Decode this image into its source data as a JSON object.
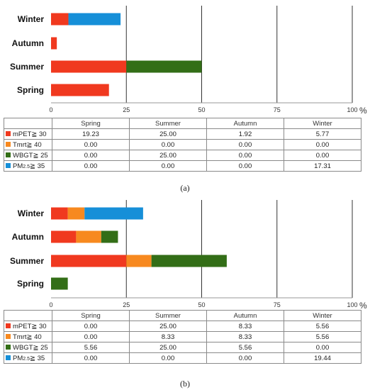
{
  "colors": {
    "mPET": "#f0391f",
    "Tmrt": "#f7891f",
    "WBGT": "#336e17",
    "PM25": "#168fd8"
  },
  "chart_data": [
    {
      "type": "bar",
      "orientation": "horizontal",
      "stacked": true,
      "categories": [
        "Winter",
        "Autumn",
        "Summer",
        "Spring"
      ],
      "xticks": [
        "0",
        "25",
        "50",
        "75",
        "100"
      ],
      "xlim": [
        0,
        100
      ],
      "unit_label": "%",
      "series": [
        {
          "name_prefix": "mPET",
          "name_sym": "≧ 30",
          "key": "mPET",
          "values": {
            "Spring": 19.23,
            "Summer": 25.0,
            "Autumn": 1.92,
            "Winter": 5.77
          }
        },
        {
          "name_prefix": "Tmrt",
          "name_sym": "≧ 40",
          "key": "Tmrt",
          "values": {
            "Spring": 0.0,
            "Summer": 0.0,
            "Autumn": 0.0,
            "Winter": 0.0
          }
        },
        {
          "name_prefix": "WBGT",
          "name_sym": "≧ 25",
          "key": "WBGT",
          "values": {
            "Spring": 0.0,
            "Summer": 25.0,
            "Autumn": 0.0,
            "Winter": 0.0
          }
        },
        {
          "name_prefix": "PM",
          "name_sub": "2.5",
          "name_sym": "≧ 35",
          "key": "PM25",
          "values": {
            "Spring": 0.0,
            "Summer": 0.0,
            "Autumn": 0.0,
            "Winter": 17.31
          }
        }
      ],
      "table": {
        "columns": [
          "Spring",
          "Summer",
          "Autumn",
          "Winter"
        ],
        "rows": [
          [
            "19.23",
            "25.00",
            "1.92",
            "5.77"
          ],
          [
            "0.00",
            "0.00",
            "0.00",
            "0.00"
          ],
          [
            "0.00",
            "25.00",
            "0.00",
            "0.00"
          ],
          [
            "0.00",
            "0.00",
            "0.00",
            "17.31"
          ]
        ]
      },
      "caption": "(a)"
    },
    {
      "type": "bar",
      "orientation": "horizontal",
      "stacked": true,
      "categories": [
        "Winter",
        "Autumn",
        "Summer",
        "Spring"
      ],
      "xticks": [
        "0",
        "25",
        "50",
        "75",
        "100"
      ],
      "xlim": [
        0,
        100
      ],
      "unit_label": "%",
      "series": [
        {
          "name_prefix": "mPET",
          "name_sym": "≧ 30",
          "key": "mPET",
          "values": {
            "Spring": 0.0,
            "Summer": 25.0,
            "Autumn": 8.33,
            "Winter": 5.56
          }
        },
        {
          "name_prefix": "Tmrt",
          "name_sym": "≧ 40",
          "key": "Tmrt",
          "values": {
            "Spring": 0.0,
            "Summer": 8.33,
            "Autumn": 8.33,
            "Winter": 5.56
          }
        },
        {
          "name_prefix": "WBGT",
          "name_sym": "≧ 25",
          "key": "WBGT",
          "values": {
            "Spring": 5.56,
            "Summer": 25.0,
            "Autumn": 5.56,
            "Winter": 0.0
          }
        },
        {
          "name_prefix": "PM",
          "name_sub": "2.5",
          "name_sym": "≧ 35",
          "key": "PM25",
          "values": {
            "Spring": 0.0,
            "Summer": 0.0,
            "Autumn": 0.0,
            "Winter": 19.44
          }
        }
      ],
      "table": {
        "columns": [
          "Spring",
          "Summer",
          "Autumn",
          "Winter"
        ],
        "rows": [
          [
            "0.00",
            "25.00",
            "8.33",
            "5.56"
          ],
          [
            "0.00",
            "8.33",
            "8.33",
            "5.56"
          ],
          [
            "5.56",
            "25.00",
            "5.56",
            "0.00"
          ],
          [
            "0.00",
            "0.00",
            "0.00",
            "19.44"
          ]
        ]
      },
      "caption": "(b)"
    }
  ]
}
